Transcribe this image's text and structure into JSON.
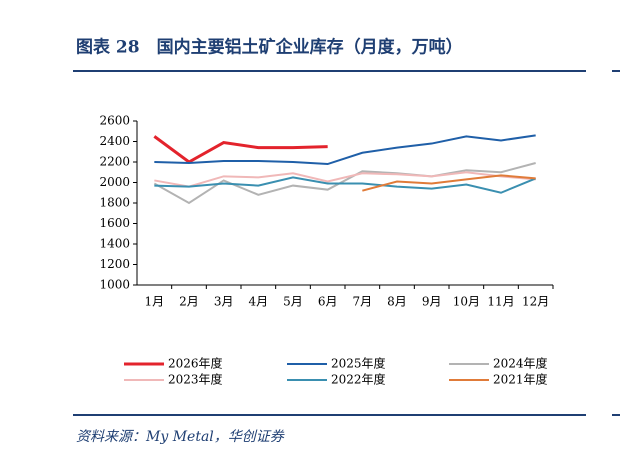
{
  "chart_data": {
    "type": "line",
    "title": "图表 28　国内主要铝土矿企业库存（月度，万吨）",
    "source": "资料来源：My Metal，华创证券",
    "categories": [
      "1月",
      "2月",
      "3月",
      "4月",
      "5月",
      "6月",
      "7月",
      "8月",
      "9月",
      "10月",
      "11月",
      "12月"
    ],
    "ylim": [
      1000,
      2600
    ],
    "yticks": [
      1000,
      1200,
      1400,
      1600,
      1800,
      2000,
      2200,
      2400,
      2600
    ],
    "series": [
      {
        "name": "2026年度",
        "color": "#e3232c",
        "values": [
          2450,
          2200,
          2390,
          2340,
          2340,
          2350,
          null,
          null,
          null,
          null,
          null,
          null
        ]
      },
      {
        "name": "2025年度",
        "color": "#1f5fa8",
        "values": [
          2200,
          2190,
          2210,
          2210,
          2200,
          2180,
          2290,
          2340,
          2380,
          2450,
          2410,
          2460
        ]
      },
      {
        "name": "2024年度",
        "color": "#b3b3b3",
        "values": [
          1990,
          1800,
          2020,
          1880,
          1970,
          1930,
          2110,
          2090,
          2060,
          2120,
          2100,
          2190
        ]
      },
      {
        "name": "2023年度",
        "color": "#f0b8b8",
        "values": [
          2020,
          1960,
          2060,
          2050,
          2090,
          2010,
          2090,
          2080,
          2060,
          2100,
          2060,
          2030
        ]
      },
      {
        "name": "2022年度",
        "color": "#3a8fb0",
        "values": [
          1970,
          1960,
          1990,
          1970,
          2050,
          1990,
          1990,
          1960,
          1940,
          1980,
          1900,
          2040
        ]
      },
      {
        "name": "2021年度",
        "color": "#e07b39",
        "values": [
          null,
          null,
          null,
          null,
          null,
          null,
          1920,
          2010,
          1990,
          2030,
          2070,
          2040
        ]
      }
    ]
  }
}
